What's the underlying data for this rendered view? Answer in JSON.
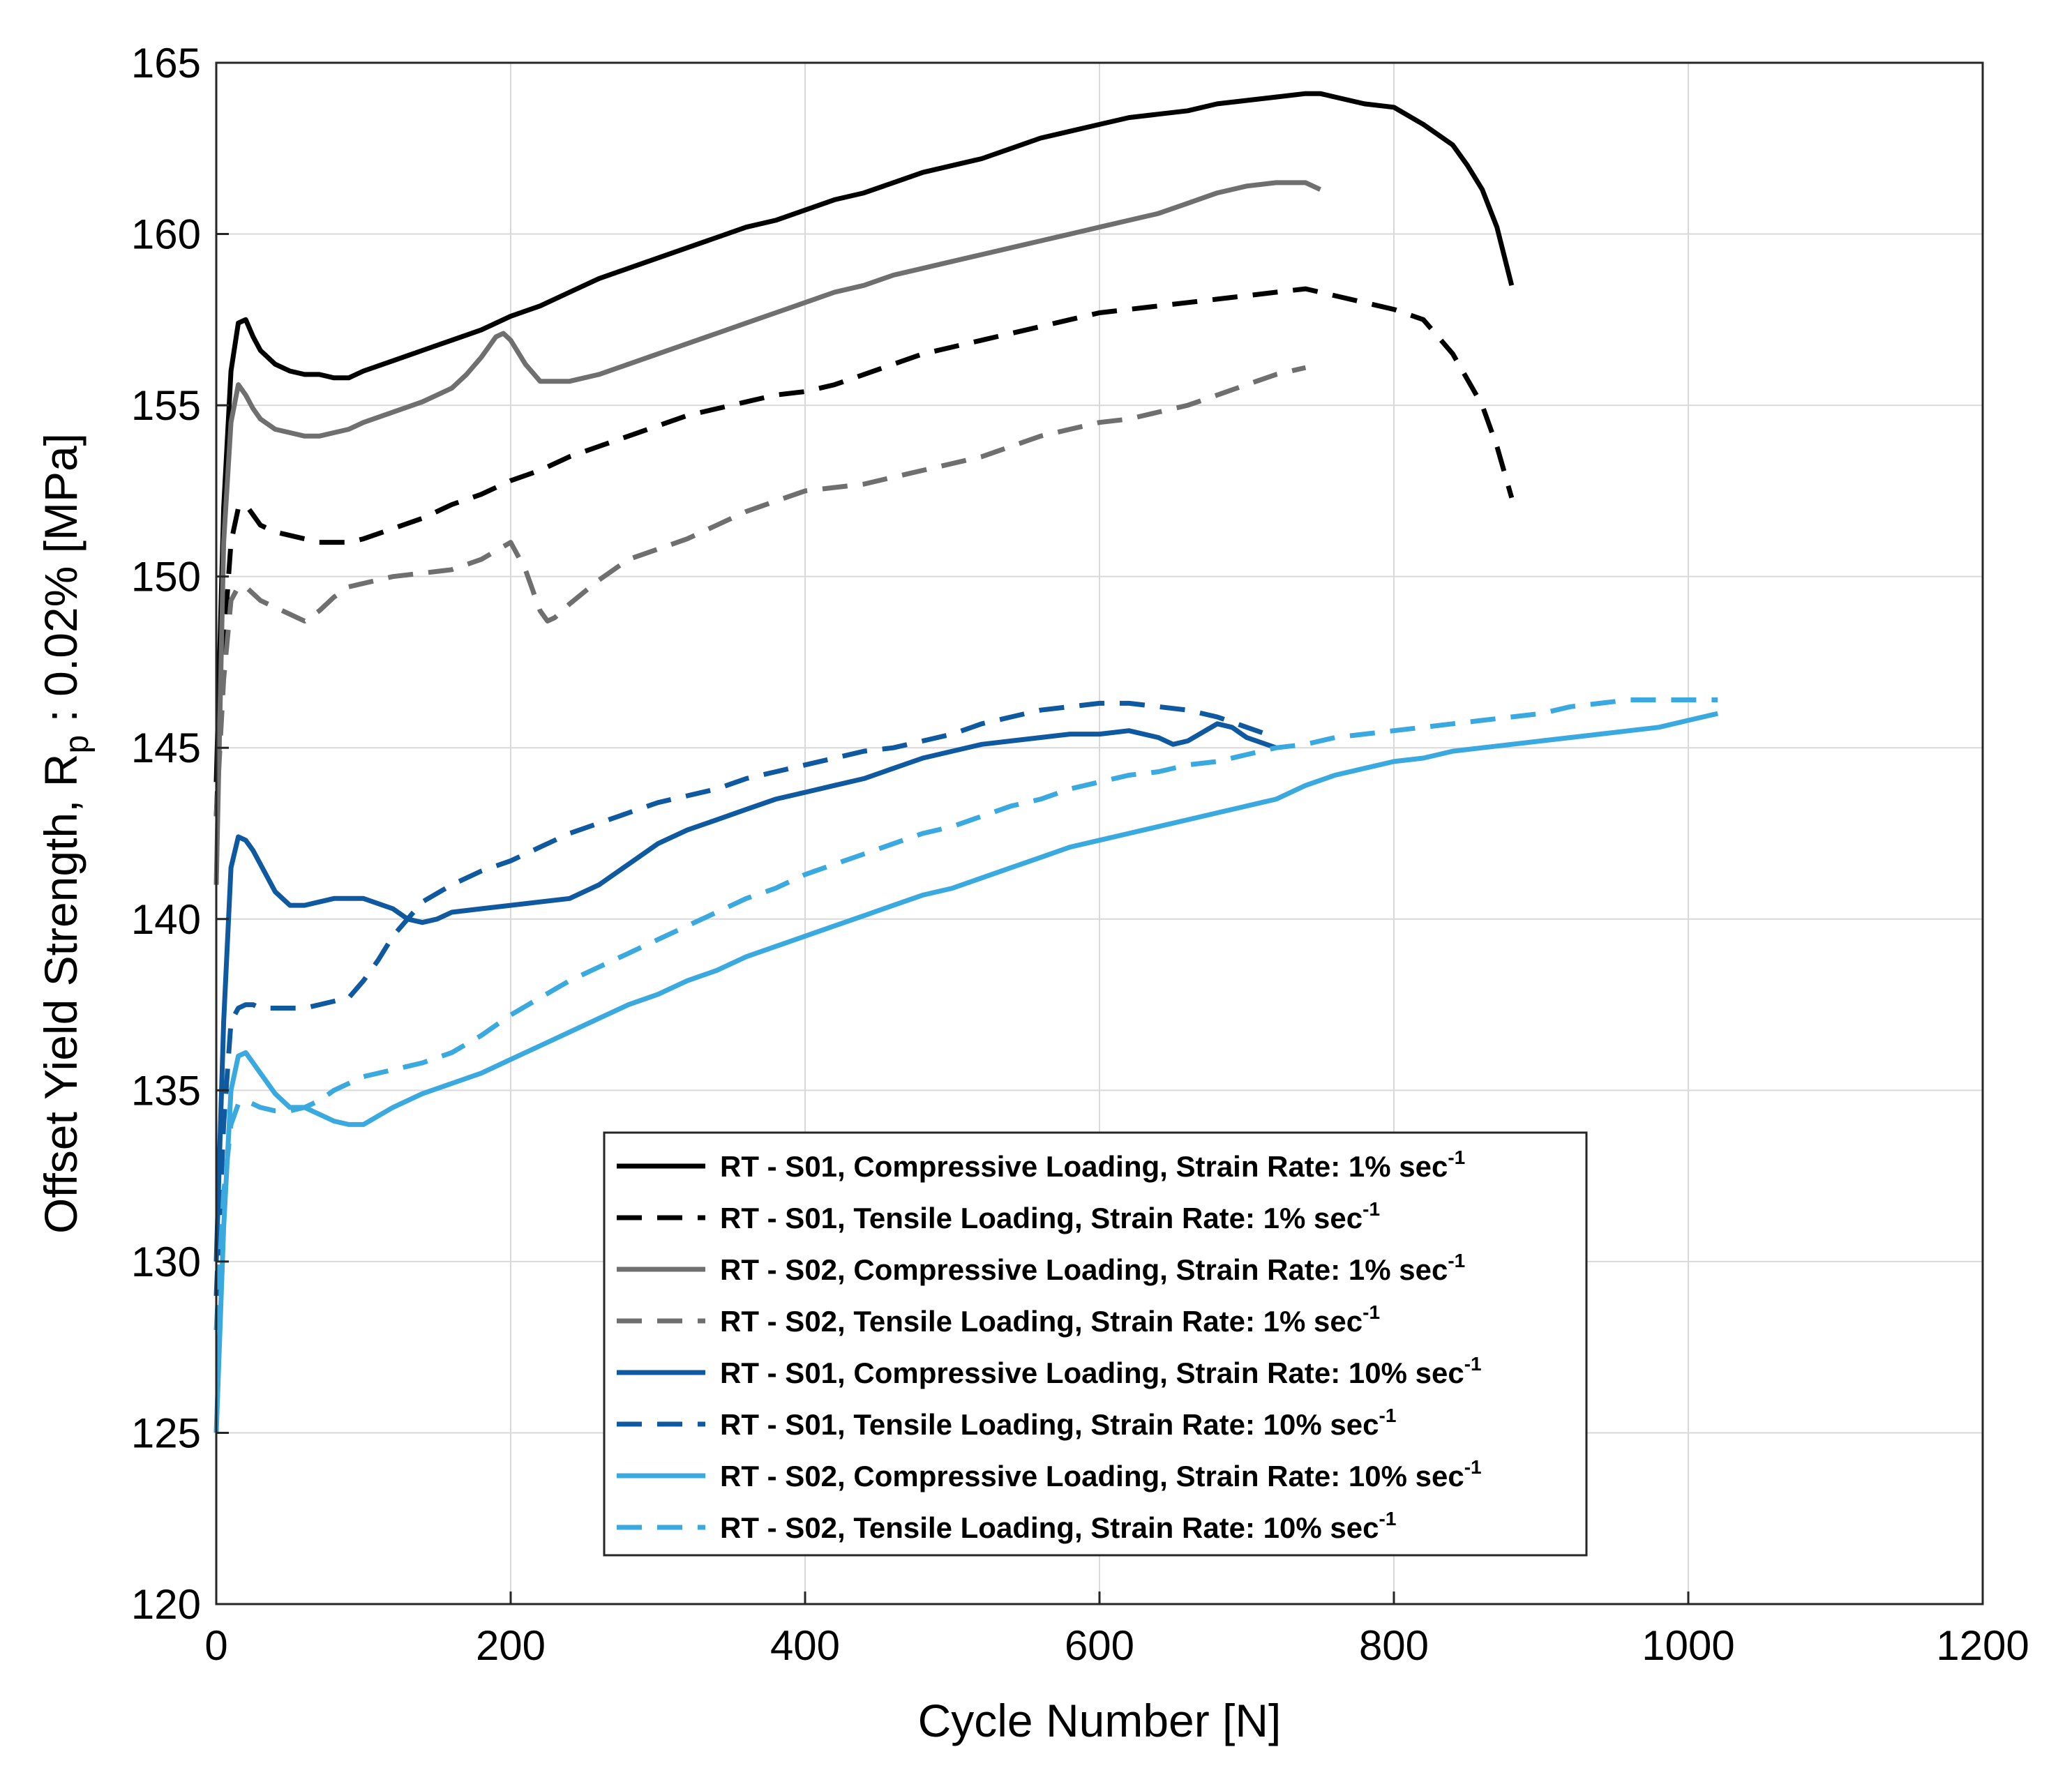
{
  "chart_data": {
    "type": "line",
    "title": "",
    "xlabel": "Cycle Number [N]",
    "ylabel": {
      "prefix": "Offset Yield Strength, R",
      "subscript": "p",
      "suffix": " : 0.02% [MPa]"
    },
    "xlim": [
      0,
      1200
    ],
    "ylim": [
      120,
      165
    ],
    "xticks": [
      "0",
      "200",
      "400",
      "600",
      "800",
      "1000",
      "1200"
    ],
    "yticks": [
      "120",
      "125",
      "130",
      "135",
      "140",
      "145",
      "150",
      "155",
      "160",
      "165"
    ],
    "xtick_values": [
      0,
      200,
      400,
      600,
      800,
      1000,
      1200
    ],
    "ytick_values": [
      120,
      125,
      130,
      135,
      140,
      145,
      150,
      155,
      160,
      165
    ],
    "grid": true,
    "legend_position": "lower-center",
    "series": [
      {
        "name": "RT - S01, Compressive Loading, Strain Rate: 1% sec",
        "superscript": "-1",
        "color": "#000000",
        "dash": "solid",
        "x": [
          0,
          5,
          10,
          15,
          20,
          25,
          30,
          40,
          50,
          60,
          70,
          80,
          90,
          100,
          120,
          140,
          160,
          180,
          200,
          220,
          240,
          260,
          280,
          300,
          320,
          340,
          360,
          380,
          400,
          420,
          440,
          460,
          480,
          500,
          520,
          540,
          560,
          580,
          600,
          620,
          640,
          660,
          680,
          700,
          720,
          740,
          750,
          760,
          780,
          800,
          820,
          840,
          850,
          860,
          870,
          880
        ],
        "y": [
          144,
          152,
          156,
          157.4,
          157.5,
          157,
          156.6,
          156.2,
          156,
          155.9,
          155.9,
          155.8,
          155.8,
          156,
          156.3,
          156.6,
          156.9,
          157.2,
          157.6,
          157.9,
          158.3,
          158.7,
          159,
          159.3,
          159.6,
          159.9,
          160.2,
          160.4,
          160.7,
          161,
          161.2,
          161.5,
          161.8,
          162,
          162.2,
          162.5,
          162.8,
          163,
          163.2,
          163.4,
          163.5,
          163.6,
          163.8,
          163.9,
          164,
          164.1,
          164.1,
          164,
          163.8,
          163.7,
          163.2,
          162.6,
          162,
          161.3,
          160.2,
          158.5
        ]
      },
      {
        "name": "RT - S01, Tensile Loading, Strain Rate: 1% sec",
        "superscript": "-1",
        "color": "#000000",
        "dash": "dashed",
        "x": [
          0,
          5,
          10,
          15,
          20,
          25,
          30,
          40,
          50,
          60,
          70,
          80,
          90,
          100,
          120,
          140,
          160,
          180,
          200,
          220,
          240,
          260,
          280,
          300,
          320,
          340,
          360,
          380,
          400,
          420,
          440,
          460,
          480,
          500,
          520,
          540,
          560,
          580,
          600,
          620,
          640,
          660,
          680,
          700,
          720,
          740,
          760,
          780,
          800,
          820,
          840,
          860,
          870,
          880
        ],
        "y": [
          143,
          148,
          151,
          152,
          152.1,
          151.8,
          151.5,
          151.3,
          151.2,
          151.1,
          151,
          151,
          151,
          151.1,
          151.4,
          151.7,
          152.1,
          152.4,
          152.8,
          153.1,
          153.5,
          153.8,
          154.1,
          154.4,
          154.7,
          154.9,
          155.1,
          155.3,
          155.4,
          155.6,
          155.9,
          156.2,
          156.5,
          156.7,
          156.9,
          157.1,
          157.3,
          157.5,
          157.7,
          157.8,
          157.9,
          158,
          158.1,
          158.2,
          158.3,
          158.4,
          158.2,
          158,
          157.8,
          157.5,
          156.5,
          155,
          153.8,
          152.3
        ]
      },
      {
        "name": "RT - S02, Compressive Loading, Strain Rate: 1% sec",
        "superscript": "-1",
        "color": "#6f6f6f",
        "dash": "solid",
        "x": [
          0,
          5,
          10,
          15,
          20,
          25,
          30,
          40,
          50,
          60,
          70,
          80,
          90,
          100,
          120,
          140,
          160,
          170,
          180,
          190,
          195,
          200,
          210,
          220,
          240,
          260,
          280,
          300,
          320,
          340,
          360,
          380,
          400,
          420,
          440,
          460,
          480,
          500,
          520,
          540,
          560,
          580,
          600,
          620,
          640,
          660,
          680,
          700,
          720,
          740,
          750
        ],
        "y": [
          141,
          151,
          154.5,
          155.6,
          155.3,
          154.9,
          154.6,
          154.3,
          154.2,
          154.1,
          154.1,
          154.2,
          154.3,
          154.5,
          154.8,
          155.1,
          155.5,
          155.9,
          156.4,
          157,
          157.1,
          156.9,
          156.2,
          155.7,
          155.7,
          155.9,
          156.2,
          156.5,
          156.8,
          157.1,
          157.4,
          157.7,
          158,
          158.3,
          158.5,
          158.8,
          159,
          159.2,
          159.4,
          159.6,
          159.8,
          160,
          160.2,
          160.4,
          160.6,
          160.9,
          161.2,
          161.4,
          161.5,
          161.5,
          161.3
        ]
      },
      {
        "name": "RT - S02, Tensile Loading, Strain Rate: 1% sec",
        "superscript": "-1",
        "color": "#6f6f6f",
        "dash": "dashed",
        "x": [
          0,
          5,
          10,
          15,
          20,
          25,
          30,
          40,
          50,
          60,
          70,
          80,
          90,
          100,
          120,
          140,
          160,
          180,
          200,
          210,
          220,
          225,
          230,
          240,
          260,
          280,
          300,
          320,
          340,
          360,
          380,
          400,
          420,
          440,
          460,
          480,
          500,
          520,
          540,
          560,
          580,
          600,
          620,
          640,
          660,
          680,
          700,
          720,
          740
        ],
        "y": [
          143,
          147,
          149.3,
          149.7,
          149.7,
          149.5,
          149.3,
          149.1,
          148.9,
          148.7,
          149,
          149.4,
          149.7,
          149.8,
          150,
          150.1,
          150.2,
          150.5,
          151,
          150.2,
          149,
          148.7,
          148.8,
          149.2,
          149.9,
          150.5,
          150.8,
          151.1,
          151.5,
          151.9,
          152.2,
          152.5,
          152.6,
          152.7,
          152.9,
          153.1,
          153.3,
          153.5,
          153.8,
          154.1,
          154.3,
          154.5,
          154.6,
          154.8,
          155,
          155.3,
          155.6,
          155.9,
          156.1
        ]
      },
      {
        "name": "RT - S01, Compressive Loading, Strain Rate: 10% sec",
        "superscript": "-1",
        "color": "#0f59a1",
        "dash": "solid",
        "x": [
          0,
          5,
          10,
          15,
          20,
          25,
          30,
          40,
          50,
          60,
          70,
          80,
          90,
          100,
          120,
          130,
          140,
          150,
          160,
          180,
          200,
          220,
          240,
          260,
          280,
          300,
          320,
          340,
          360,
          380,
          400,
          420,
          440,
          460,
          480,
          500,
          520,
          540,
          560,
          580,
          600,
          620,
          640,
          650,
          660,
          680,
          690,
          700,
          720
        ],
        "y": [
          130,
          137,
          141.5,
          142.4,
          142.3,
          142,
          141.6,
          140.8,
          140.4,
          140.4,
          140.5,
          140.6,
          140.6,
          140.6,
          140.3,
          140,
          139.9,
          140,
          140.2,
          140.3,
          140.4,
          140.5,
          140.6,
          141,
          141.6,
          142.2,
          142.6,
          142.9,
          143.2,
          143.5,
          143.7,
          143.9,
          144.1,
          144.4,
          144.7,
          144.9,
          145.1,
          145.2,
          145.3,
          145.4,
          145.4,
          145.5,
          145.3,
          145.1,
          145.2,
          145.7,
          145.6,
          145.3,
          145
        ]
      },
      {
        "name": "RT - S01, Tensile Loading, Strain Rate: 10% sec",
        "superscript": "-1",
        "color": "#0f59a1",
        "dash": "dashed",
        "x": [
          0,
          5,
          10,
          15,
          20,
          25,
          30,
          40,
          50,
          60,
          70,
          80,
          90,
          100,
          110,
          120,
          140,
          160,
          180,
          200,
          220,
          240,
          260,
          280,
          300,
          320,
          340,
          360,
          380,
          400,
          420,
          440,
          460,
          480,
          500,
          520,
          540,
          560,
          580,
          600,
          620,
          640,
          660,
          680,
          700,
          720
        ],
        "y": [
          129,
          134,
          137,
          137.4,
          137.5,
          137.5,
          137.4,
          137.4,
          137.4,
          137.4,
          137.5,
          137.6,
          137.7,
          138.2,
          138.8,
          139.5,
          140.5,
          141,
          141.4,
          141.7,
          142.1,
          142.5,
          142.8,
          143.1,
          143.4,
          143.6,
          143.8,
          144.1,
          144.3,
          144.5,
          144.7,
          144.9,
          145,
          145.2,
          145.4,
          145.7,
          145.9,
          146.1,
          146.2,
          146.3,
          146.3,
          146.2,
          146.1,
          145.9,
          145.6,
          145.3
        ]
      },
      {
        "name": "RT - S02, Compressive Loading, Strain Rate: 10% sec",
        "superscript": "-1",
        "color": "#3aa9e0",
        "dash": "solid",
        "x": [
          0,
          5,
          10,
          15,
          20,
          25,
          30,
          40,
          50,
          60,
          70,
          80,
          90,
          100,
          120,
          140,
          160,
          180,
          200,
          220,
          240,
          260,
          280,
          300,
          320,
          340,
          360,
          380,
          400,
          420,
          440,
          460,
          480,
          500,
          520,
          540,
          560,
          580,
          600,
          620,
          640,
          660,
          680,
          700,
          720,
          740,
          760,
          780,
          800,
          820,
          840,
          860,
          880,
          900,
          920,
          940,
          960,
          980,
          1000,
          1020
        ],
        "y": [
          125,
          131,
          135,
          136,
          136.1,
          135.8,
          135.5,
          134.9,
          134.5,
          134.5,
          134.3,
          134.1,
          134,
          134,
          134.5,
          134.9,
          135.2,
          135.5,
          135.9,
          136.3,
          136.7,
          137.1,
          137.5,
          137.8,
          138.2,
          138.5,
          138.9,
          139.2,
          139.5,
          139.8,
          140.1,
          140.4,
          140.7,
          140.9,
          141.2,
          141.5,
          141.8,
          142.1,
          142.3,
          142.5,
          142.7,
          142.9,
          143.1,
          143.3,
          143.5,
          143.9,
          144.2,
          144.4,
          144.6,
          144.7,
          144.9,
          145,
          145.1,
          145.2,
          145.3,
          145.4,
          145.5,
          145.6,
          145.8,
          146
        ]
      },
      {
        "name": "RT - S02, Tensile Loading, Strain Rate: 10% sec",
        "superscript": "-1",
        "color": "#3aa9e0",
        "dash": "dashed",
        "x": [
          0,
          5,
          10,
          15,
          20,
          25,
          30,
          40,
          50,
          60,
          70,
          80,
          100,
          120,
          140,
          160,
          180,
          200,
          220,
          240,
          260,
          280,
          300,
          320,
          340,
          360,
          380,
          400,
          420,
          440,
          460,
          480,
          500,
          520,
          540,
          560,
          580,
          600,
          620,
          640,
          660,
          680,
          700,
          720,
          740,
          760,
          780,
          800,
          820,
          840,
          860,
          880,
          900,
          920,
          940,
          960,
          980,
          1000,
          1020
        ],
        "y": [
          128,
          132,
          134,
          134.6,
          134.7,
          134.6,
          134.5,
          134.4,
          134.4,
          134.5,
          134.7,
          135,
          135.4,
          135.6,
          135.8,
          136.1,
          136.6,
          137.2,
          137.7,
          138.2,
          138.6,
          139,
          139.4,
          139.8,
          140.2,
          140.6,
          140.9,
          141.3,
          141.6,
          141.9,
          142.2,
          142.5,
          142.7,
          143,
          143.3,
          143.5,
          143.8,
          144,
          144.2,
          144.3,
          144.5,
          144.6,
          144.8,
          145,
          145.1,
          145.3,
          145.4,
          145.5,
          145.6,
          145.7,
          145.8,
          145.9,
          146,
          146.2,
          146.3,
          146.4,
          146.4,
          146.4,
          146.4
        ]
      }
    ]
  }
}
